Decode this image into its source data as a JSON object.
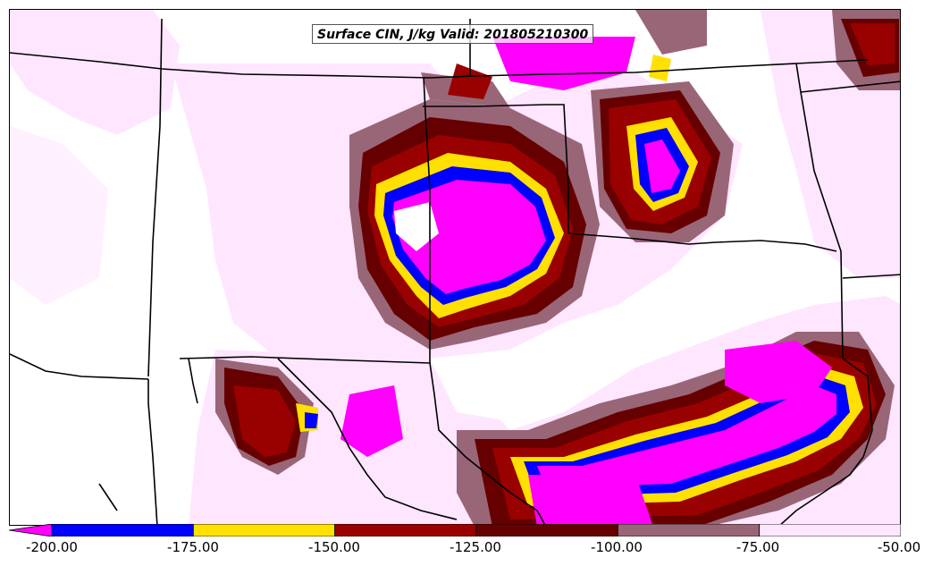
{
  "title": "Surface CIN, J/kg Valid: 201805210300",
  "colorbar": {
    "ticks": [
      "-200.00",
      "-175.00",
      "-150.00",
      "-125.00",
      "-100.00",
      "-75.00",
      "-50.00"
    ],
    "bins": [
      {
        "from": -200,
        "to": -175,
        "color": "#0000ff"
      },
      {
        "from": -175,
        "to": -150,
        "color": "#ffe000"
      },
      {
        "from": -150,
        "to": -125,
        "color": "#990000"
      },
      {
        "from": -125,
        "to": -100,
        "color": "#660000"
      },
      {
        "from": -100,
        "to": -75,
        "color": "#996677"
      },
      {
        "from": -75,
        "to": -50,
        "color": "#ffe6ff"
      }
    ],
    "under_color": "#ff00ff"
  },
  "colors": {
    "magenta": "#ff00ff",
    "blue": "#0000ff",
    "yellow": "#ffe000",
    "red": "#990000",
    "darkred": "#660000",
    "mauve": "#996677",
    "pink": "#ffe6ff",
    "border": "#000000"
  }
}
